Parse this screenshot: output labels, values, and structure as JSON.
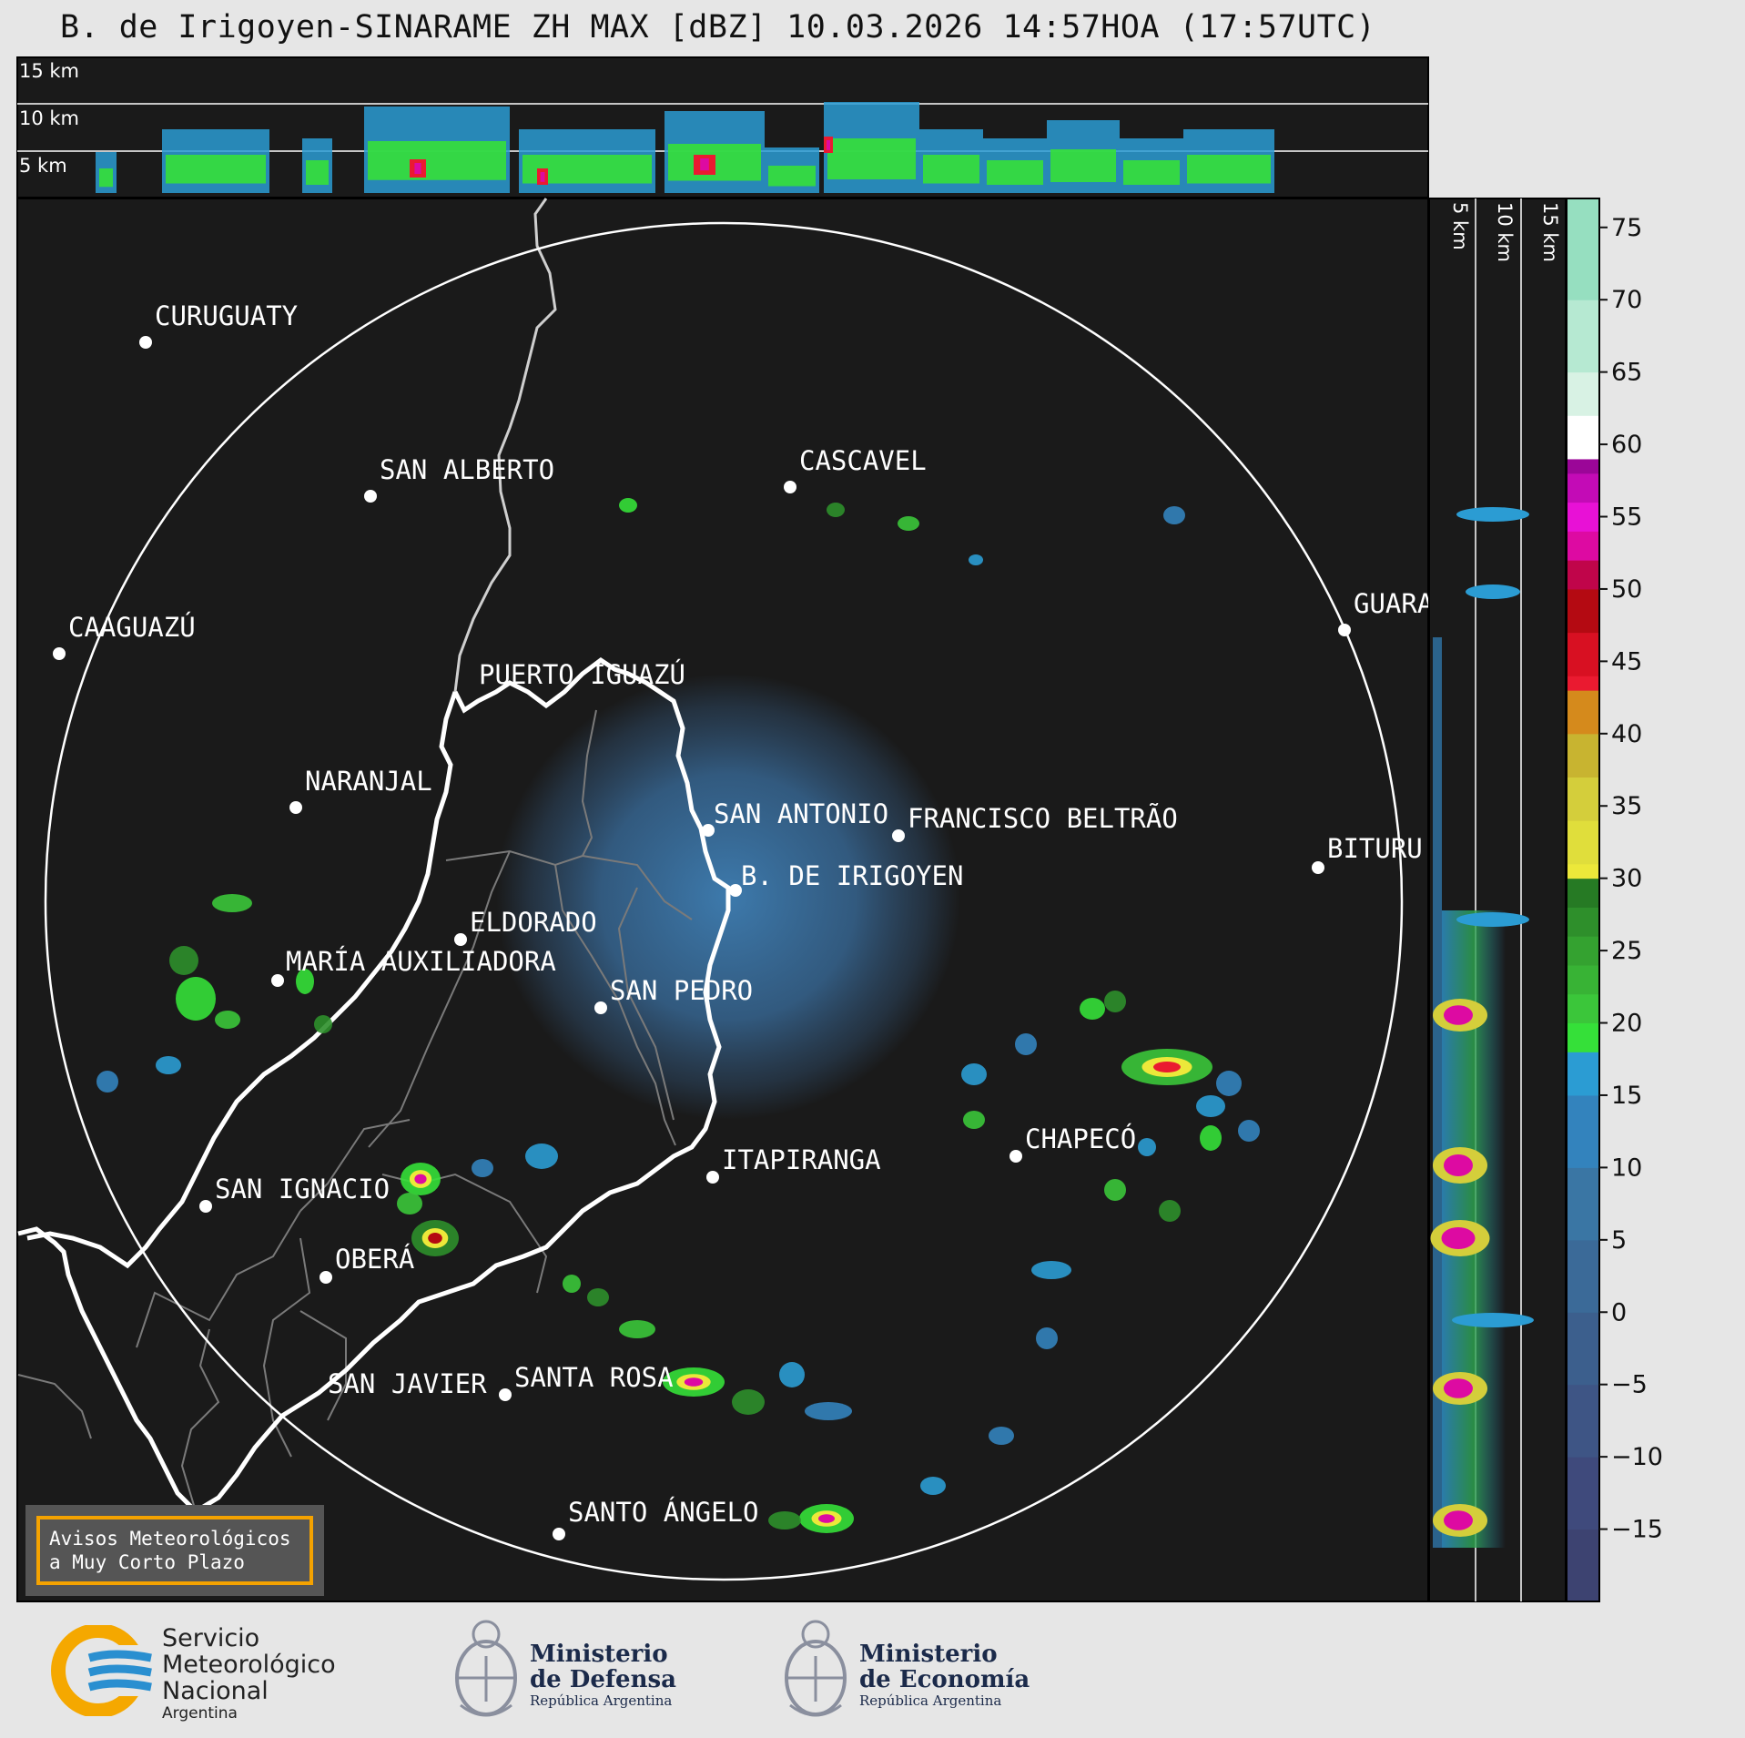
{
  "title": "B. de Irigoyen-SINARAME ZH MAX [dBZ] 10.03.2026 14:57HOA (17:57UTC)",
  "top_panel_height_labels": [
    "15 km",
    "10 km",
    "5 km"
  ],
  "side_panel_height_labels": [
    "5 km",
    "10 km",
    "15 km"
  ],
  "colorbar": {
    "ticks": [
      "75",
      "70",
      "65",
      "60",
      "55",
      "50",
      "45",
      "40",
      "35",
      "30",
      "25",
      "20",
      "15",
      "10",
      "5",
      "0",
      "−5",
      "−10",
      "−15"
    ],
    "unit": "dBZ"
  },
  "cities": [
    {
      "name": "CURUGUATY"
    },
    {
      "name": "SAN ALBERTO"
    },
    {
      "name": "CASCAVEL"
    },
    {
      "name": "CAAGUAZÚ"
    },
    {
      "name": "GUARA"
    },
    {
      "name": "PUERTO IGUAZÚ"
    },
    {
      "name": "NARANJAL"
    },
    {
      "name": "SAN ANTONIO"
    },
    {
      "name": "FRANCISCO BELTRÃO"
    },
    {
      "name": "BITURU"
    },
    {
      "name": "B. DE IRIGOYEN"
    },
    {
      "name": "ELDORADO"
    },
    {
      "name": "MARÍA AUXILIADORA"
    },
    {
      "name": "SAN PEDRO"
    },
    {
      "name": "CHAPECÓ"
    },
    {
      "name": "ITAPIRANGA"
    },
    {
      "name": "SAN IGNACIO"
    },
    {
      "name": "OBERÁ"
    },
    {
      "name": "SAN JAVIER"
    },
    {
      "name": "SANTA ROSA"
    },
    {
      "name": "SANTO ÁNGELO"
    }
  ],
  "notice": {
    "line1": "Avisos Meteorológicos",
    "line2": "a Muy Corto Plazo"
  },
  "logos": {
    "smn": {
      "line1": "Servicio",
      "line2": "Meteorológico",
      "line3": "Nacional",
      "line4": "Argentina"
    },
    "defensa": {
      "line1": "Ministerio",
      "line2": "de Defensa",
      "line3": "República Argentina"
    },
    "economia": {
      "line1": "Ministerio",
      "line2": "de Economía",
      "line3": "República Argentina"
    }
  },
  "colors": {
    "background": "#1a1a1a",
    "ring": "#ffffff",
    "border": "#ffffff",
    "province": "#7a7a7a",
    "notice_border": "#f4a200"
  }
}
